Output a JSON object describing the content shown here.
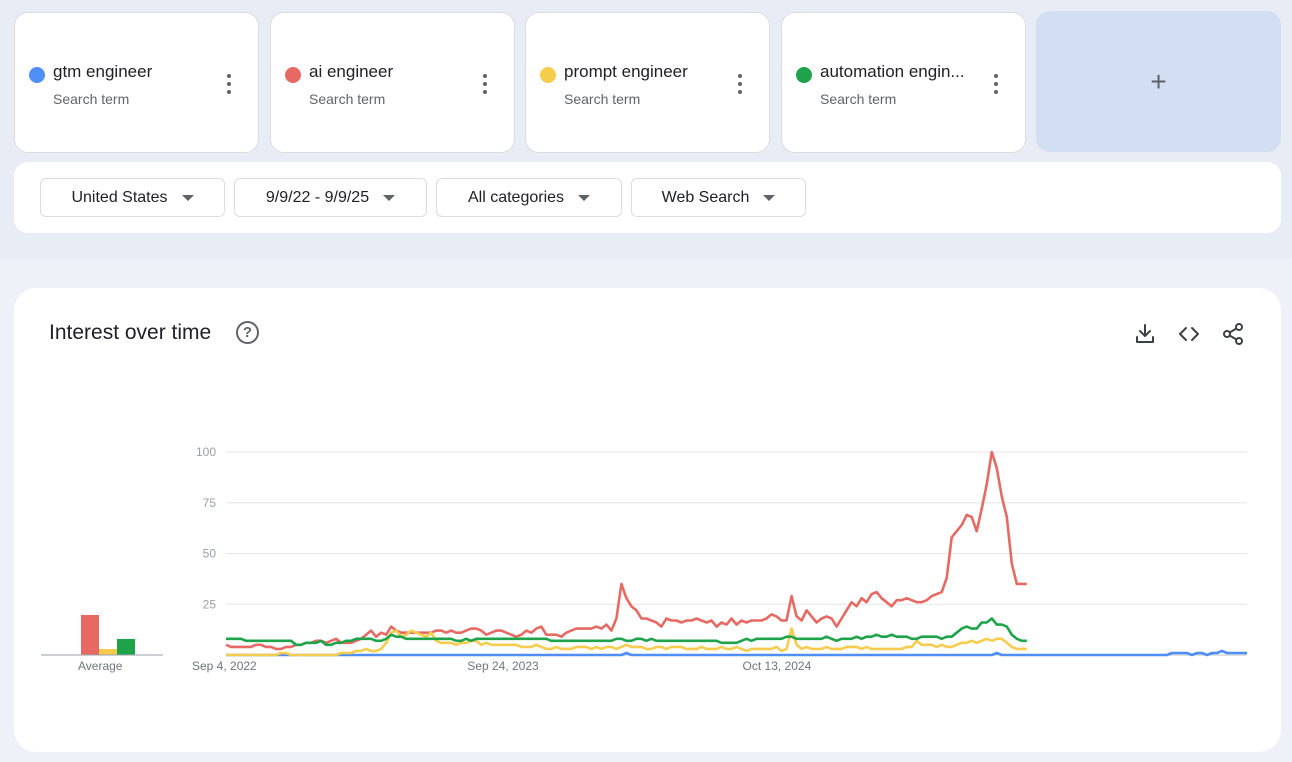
{
  "terms": [
    {
      "name": "gtm engineer",
      "sub": "Search term",
      "color": "#4f8ef7"
    },
    {
      "name": "ai engineer",
      "sub": "Search term",
      "color": "#e66a63"
    },
    {
      "name": "prompt engineer",
      "sub": "Search term",
      "color": "#f5cc4d"
    },
    {
      "name": "automation engin...",
      "sub": "Search term",
      "color": "#1ea34a"
    }
  ],
  "add_button": {
    "label": "+"
  },
  "filters": {
    "region": "United States",
    "date_range": "9/9/22 - 9/9/25",
    "category": "All categories",
    "search_type": "Web Search"
  },
  "card": {
    "title": "Interest over time",
    "help_icon": "?",
    "icons": [
      "download-icon",
      "embed-code-icon",
      "share-icon"
    ]
  },
  "average": {
    "label": "Average",
    "values": [
      0,
      20,
      3,
      8
    ]
  },
  "chart_data": {
    "type": "line",
    "ylim": [
      0,
      100
    ],
    "yticks": [
      100,
      75,
      50,
      25
    ],
    "xticks": [
      "Sep 4, 2022",
      "Sep 24, 2023",
      "Oct 13, 2024"
    ],
    "xtick_week_index": [
      0,
      55,
      110
    ],
    "grid": true,
    "series": [
      {
        "name": "gtm engineer",
        "color": "#4f8ef7",
        "values": [
          0,
          0,
          0,
          0,
          0,
          0,
          0,
          0,
          0,
          0,
          0,
          0,
          0,
          0,
          0,
          0,
          0,
          0,
          0,
          0,
          0,
          0,
          0,
          0,
          0,
          0,
          0,
          0,
          0,
          0,
          0,
          0,
          0,
          0,
          0,
          0,
          0,
          0,
          0,
          0,
          0,
          0,
          0,
          0,
          0,
          0,
          0,
          0,
          0,
          0,
          0,
          0,
          0,
          0,
          0,
          0,
          0,
          0,
          0,
          0,
          0,
          0,
          0,
          0,
          0,
          0,
          0,
          0,
          0,
          0,
          0,
          0,
          0,
          0,
          0,
          0,
          0,
          0,
          0,
          0,
          1,
          0,
          0,
          0,
          0,
          0,
          0,
          0,
          0,
          0,
          0,
          0,
          0,
          0,
          0,
          0,
          0,
          0,
          0,
          0,
          0,
          0,
          0,
          0,
          0,
          0,
          0,
          0,
          0,
          0,
          0,
          0,
          0,
          0,
          0,
          0,
          0,
          0,
          0,
          0,
          0,
          0,
          0,
          0,
          0,
          0,
          0,
          0,
          0,
          0,
          0,
          0,
          0,
          0,
          0,
          0,
          0,
          0,
          0,
          0,
          0,
          0,
          0,
          0,
          0,
          0,
          0,
          0,
          0,
          0,
          0,
          0,
          0,
          0,
          1,
          0,
          0,
          0,
          0,
          0,
          0,
          0,
          0,
          0,
          0,
          0,
          0,
          0,
          0,
          0,
          0,
          0,
          0,
          0,
          0,
          0,
          0,
          0,
          0,
          0,
          0,
          0,
          0,
          0,
          0,
          0,
          0,
          0,
          0,
          1,
          1,
          1,
          1,
          0,
          1,
          1,
          0,
          1,
          1,
          2,
          1,
          1,
          1,
          1,
          1
        ]
      },
      {
        "name": "ai engineer",
        "color": "#e66a63",
        "values": [
          5,
          4,
          4,
          4,
          4,
          4,
          5,
          5,
          4,
          4,
          3,
          3,
          4,
          4,
          5,
          5,
          6,
          6,
          7,
          7,
          6,
          7,
          8,
          6,
          6,
          6,
          7,
          8,
          10,
          12,
          9,
          11,
          10,
          14,
          12,
          11,
          11,
          11,
          11,
          11,
          11,
          11,
          12,
          12,
          11,
          12,
          11,
          11,
          12,
          13,
          13,
          12,
          10,
          11,
          12,
          12,
          11,
          10,
          9,
          10,
          12,
          11,
          13,
          14,
          10,
          10,
          10,
          9,
          11,
          12,
          13,
          13,
          13,
          13,
          14,
          13,
          15,
          12,
          18,
          35,
          28,
          24,
          22,
          18,
          18,
          17,
          16,
          14,
          18,
          17,
          17,
          16,
          17,
          17,
          18,
          17,
          16,
          17,
          14,
          16,
          15,
          18,
          15,
          17,
          16,
          17,
          17,
          17,
          18,
          20,
          19,
          17,
          17,
          29,
          19,
          17,
          22,
          19,
          16,
          18,
          19,
          18,
          14,
          18,
          22,
          26,
          24,
          28,
          26,
          30,
          31,
          28,
          26,
          24,
          27,
          27,
          28,
          27,
          26,
          26,
          27,
          29,
          30,
          31,
          38,
          58,
          61,
          64,
          69,
          68,
          61,
          72,
          84,
          100,
          92,
          78,
          68,
          45,
          35,
          35,
          35
        ]
      },
      {
        "name": "prompt engineer",
        "color": "#f5cc4d",
        "values": [
          0,
          0,
          0,
          0,
          0,
          0,
          0,
          0,
          0,
          0,
          0,
          1,
          1,
          0,
          0,
          0,
          0,
          0,
          0,
          0,
          0,
          0,
          0,
          1,
          1,
          1,
          2,
          2,
          3,
          2,
          2,
          3,
          6,
          11,
          12,
          9,
          10,
          12,
          11,
          10,
          9,
          11,
          7,
          6,
          6,
          6,
          5,
          6,
          6,
          7,
          7,
          5,
          6,
          5,
          5,
          5,
          5,
          5,
          5,
          4,
          4,
          4,
          5,
          4,
          3,
          3,
          4,
          3,
          3,
          3,
          4,
          4,
          4,
          3,
          4,
          3,
          4,
          4,
          3,
          4,
          5,
          4,
          4,
          4,
          3,
          3,
          4,
          4,
          3,
          4,
          4,
          4,
          3,
          3,
          3,
          4,
          3,
          3,
          3,
          4,
          3,
          3,
          4,
          3,
          2,
          3,
          3,
          3,
          3,
          3,
          4,
          2,
          3,
          13,
          5,
          3,
          4,
          3,
          3,
          3,
          4,
          3,
          3,
          3,
          4,
          4,
          4,
          3,
          4,
          3,
          3,
          3,
          3,
          3,
          3,
          3,
          4,
          4,
          7,
          5,
          5,
          5,
          4,
          5,
          4,
          4,
          5,
          6,
          6,
          7,
          6,
          7,
          8,
          7,
          8,
          8,
          6,
          4,
          3,
          3,
          3
        ]
      },
      {
        "name": "automation engin...",
        "color": "#1ea34a",
        "values": [
          8,
          8,
          8,
          8,
          7,
          7,
          7,
          7,
          7,
          7,
          7,
          7,
          7,
          7,
          5,
          5,
          6,
          6,
          6,
          7,
          5,
          5,
          6,
          6,
          7,
          7,
          8,
          8,
          8,
          8,
          7,
          7,
          8,
          10,
          9,
          9,
          8,
          8,
          8,
          8,
          8,
          8,
          8,
          8,
          8,
          8,
          7,
          7,
          8,
          7,
          8,
          8,
          8,
          8,
          8,
          8,
          8,
          8,
          8,
          8,
          8,
          8,
          8,
          8,
          8,
          7,
          7,
          7,
          7,
          7,
          7,
          7,
          7,
          7,
          7,
          7,
          7,
          7,
          8,
          8,
          7,
          7,
          8,
          8,
          7,
          8,
          7,
          7,
          7,
          7,
          7,
          7,
          7,
          7,
          7,
          7,
          7,
          7,
          7,
          6,
          6,
          6,
          6,
          7,
          8,
          7,
          8,
          8,
          8,
          8,
          8,
          8,
          9,
          9,
          8,
          8,
          8,
          8,
          8,
          8,
          9,
          8,
          7,
          8,
          8,
          8,
          9,
          8,
          9,
          9,
          10,
          9,
          9,
          10,
          9,
          9,
          9,
          8,
          8,
          9,
          9,
          9,
          9,
          8,
          9,
          9,
          11,
          13,
          14,
          13,
          13,
          16,
          16,
          18,
          15,
          15,
          14,
          10,
          8,
          7,
          7
        ]
      }
    ]
  }
}
